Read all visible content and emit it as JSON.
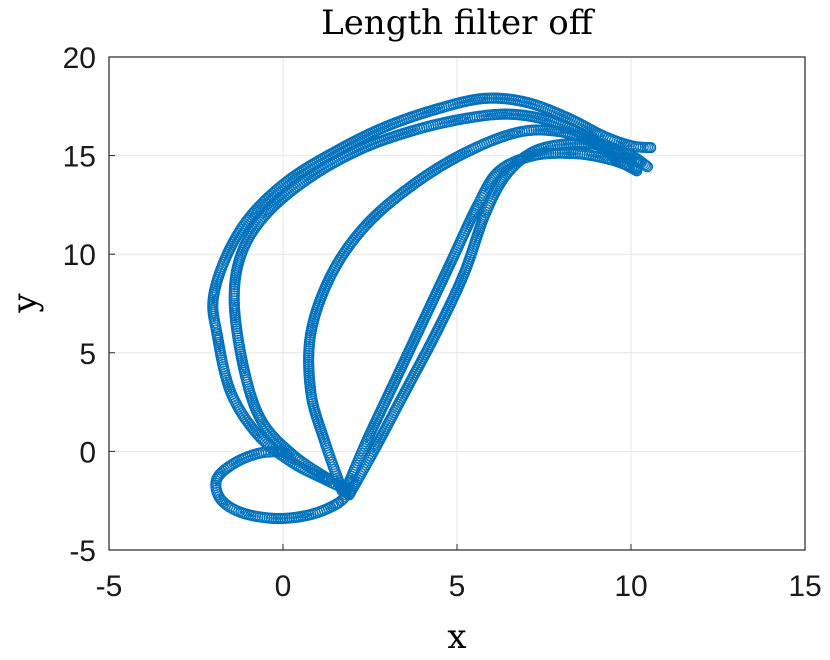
{
  "chart_data": {
    "type": "scatter",
    "title": "Length filter off",
    "xlabel": "x",
    "ylabel": "y",
    "xlim": [
      -5,
      15
    ],
    "ylim": [
      -5,
      20
    ],
    "xticks": [
      -5,
      0,
      5,
      10,
      15
    ],
    "yticks": [
      -5,
      0,
      5,
      10,
      15,
      20
    ],
    "xtick_labels": [
      "-5",
      "0",
      "5",
      "10",
      "15"
    ],
    "ytick_labels": [
      "-5",
      "0",
      "5",
      "10",
      "15",
      "20"
    ],
    "grid": true,
    "marker": "open-circle",
    "color": "#0072BD",
    "paths": [
      {
        "points": [
          [
            0,
            0
          ],
          [
            -0.7,
            -0.1
          ],
          [
            -1.4,
            -0.6
          ],
          [
            -1.9,
            -1.4
          ],
          [
            -1.8,
            -2.4
          ],
          [
            -1.2,
            -3.1
          ],
          [
            -0.2,
            -3.4
          ],
          [
            0.8,
            -3.2
          ],
          [
            1.6,
            -2.6
          ],
          [
            1.8,
            -2.0
          ],
          [
            1.3,
            -1.5
          ],
          [
            0.3,
            -0.6
          ],
          [
            -0.7,
            0.8
          ],
          [
            -1.5,
            3
          ],
          [
            -1.9,
            6
          ],
          [
            -2.0,
            7.8
          ],
          [
            -1.6,
            10
          ],
          [
            -0.9,
            12
          ],
          [
            0.2,
            13.8
          ],
          [
            1.6,
            15.3
          ],
          [
            3.0,
            16.5
          ],
          [
            4.5,
            17.4
          ],
          [
            5.8,
            17.9
          ],
          [
            7.0,
            17.7
          ],
          [
            8.2,
            16.9
          ],
          [
            9.2,
            16.0
          ],
          [
            10.0,
            15.5
          ],
          [
            10.6,
            15.4
          ]
        ]
      },
      {
        "points": [
          [
            1.3,
            -1.4
          ],
          [
            0.3,
            -0.2
          ],
          [
            -0.6,
            1.5
          ],
          [
            -1.1,
            4
          ],
          [
            -1.4,
            7.5
          ],
          [
            -1.2,
            10
          ],
          [
            -0.5,
            12
          ],
          [
            0.7,
            13.8
          ],
          [
            2.2,
            15.3
          ],
          [
            3.8,
            16.3
          ],
          [
            5.3,
            16.9
          ],
          [
            6.5,
            17.1
          ],
          [
            7.6,
            16.8
          ],
          [
            8.6,
            16.1
          ],
          [
            9.4,
            15.3
          ],
          [
            10.3,
            14.6
          ]
        ]
      },
      {
        "points": [
          [
            1.7,
            -2.0
          ],
          [
            1.2,
            0.5
          ],
          [
            0.8,
            3
          ],
          [
            0.8,
            6
          ],
          [
            1.4,
            9
          ],
          [
            2.4,
            11.5
          ],
          [
            3.8,
            13.6
          ],
          [
            5.3,
            15.2
          ],
          [
            6.8,
            16.2
          ],
          [
            8.0,
            16.2
          ],
          [
            9.0,
            15.6
          ],
          [
            9.6,
            14.8
          ],
          [
            10.2,
            14.2
          ]
        ]
      },
      {
        "points": [
          [
            1.9,
            -2.2
          ],
          [
            2.6,
            0
          ],
          [
            3.5,
            3
          ],
          [
            4.4,
            6
          ],
          [
            5.2,
            9
          ],
          [
            5.8,
            12
          ],
          [
            6.4,
            14
          ],
          [
            7.2,
            15.2
          ],
          [
            8.2,
            15.6
          ],
          [
            9.2,
            15.5
          ],
          [
            10.0,
            15.0
          ],
          [
            10.5,
            14.4
          ]
        ]
      },
      {
        "points": [
          [
            1.8,
            -2.0
          ],
          [
            2.4,
            0.5
          ],
          [
            3.2,
            3.5
          ],
          [
            4.0,
            6.5
          ],
          [
            4.8,
            9.5
          ],
          [
            5.6,
            12.5
          ],
          [
            6.2,
            14.2
          ],
          [
            7.2,
            15.0
          ],
          [
            8.4,
            15.1
          ],
          [
            9.4,
            14.8
          ],
          [
            10.2,
            14.3
          ]
        ]
      }
    ]
  }
}
